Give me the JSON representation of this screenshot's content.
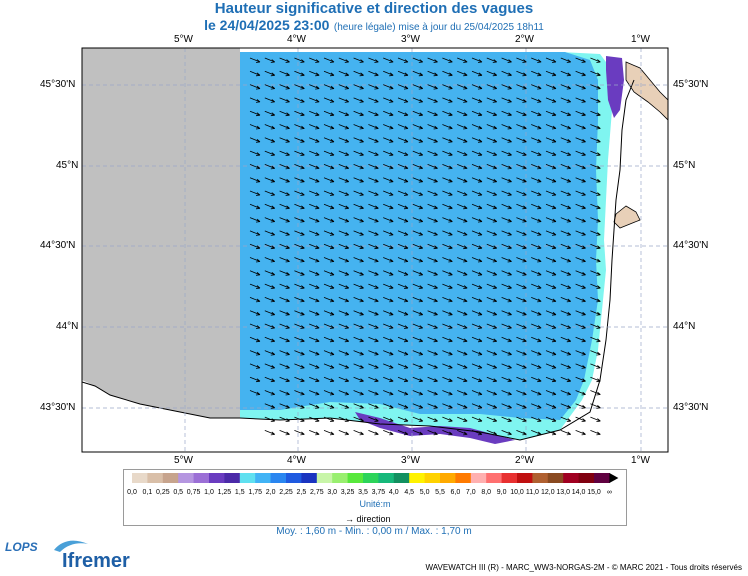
{
  "title": {
    "line1": "Hauteur significative et direction des vagues",
    "line2_main": "le 24/04/2025 23:00",
    "line2_note": "(heure légale) mise à jour du 25/04/2025 18h11"
  },
  "axes": {
    "lon_labels": [
      "5°W",
      "4°W",
      "3°W",
      "2°W",
      "1°W"
    ],
    "lat_labels": [
      "45°30'N",
      "45°N",
      "44°30'N",
      "44°N",
      "43°30'N"
    ]
  },
  "colorbar": {
    "labels": [
      "0,0",
      "0,1",
      "0,25",
      "0,5",
      "0,75",
      "1,0",
      "1,25",
      "1,5",
      "1,75",
      "2,0",
      "2,25",
      "2,5",
      "2,75",
      "3,0",
      "3,25",
      "3,5",
      "3,75",
      "4,0",
      "4,5",
      "5,0",
      "5,5",
      "6,0",
      "7,0",
      "8,0",
      "9,0",
      "10,0",
      "11,0",
      "12,0",
      "13,0",
      "14,0",
      "15,0",
      "∞"
    ],
    "colors": [
      "#e8d9c9",
      "#d9bfa8",
      "#c7a48d",
      "#b596e0",
      "#9b6fd6",
      "#6a3cc0",
      "#4b2aa8",
      "#5fe0f0",
      "#41b3f5",
      "#2a86f0",
      "#1f5ae0",
      "#1a34c0",
      "#c8f5a8",
      "#99ef6f",
      "#58e83c",
      "#2cd45a",
      "#16b87a",
      "#129060",
      "#fff200",
      "#ffd200",
      "#ffaa00",
      "#ff7a00",
      "#ffb0b0",
      "#ff7070",
      "#e83030",
      "#c01010",
      "#b06030",
      "#8a4a20",
      "#a00020",
      "#800010",
      "#600040"
    ],
    "unit": "Unité:m"
  },
  "direction_legend": "direction",
  "stats": "Moy. : 1,60 m  -  Min. : 0,00 m / Max. : 1,70 m",
  "credits": "WAVEWATCH III (R) - MARC_WW3-NORGAS-2M - © MARC 2021 - Tous droits réservés",
  "logos": {
    "lops": "LOPS",
    "ifremer": "Ifremer"
  },
  "map_colors": {
    "no_data": "#c0c0c0",
    "sea_main": "#45b3f0",
    "sea_coast": "#7ff5f0",
    "purple": "#6a3cc0",
    "land": "#e8d0b8"
  }
}
